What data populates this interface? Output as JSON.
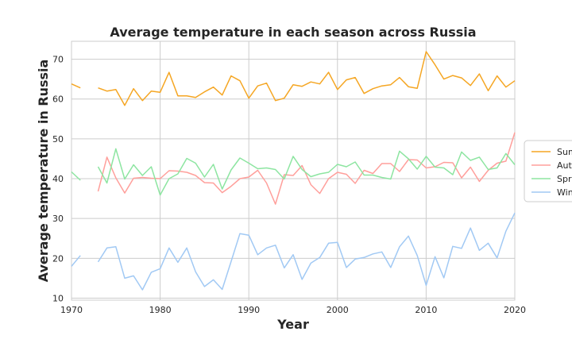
{
  "chart_data": {
    "type": "line",
    "title": "Average temperature in each season across Russia",
    "xlabel": "Year",
    "ylabel": "Average temperature in Russia",
    "xlim": [
      1970,
      2020
    ],
    "ylim": [
      9.5,
      74.5
    ],
    "xticks": [
      1970,
      1980,
      1990,
      2000,
      2010,
      2020
    ],
    "yticks": [
      10,
      20,
      30,
      40,
      50,
      60,
      70
    ],
    "grid": true,
    "legend_position": "right",
    "x": [
      1970,
      1971,
      1972,
      1973,
      1974,
      1975,
      1976,
      1977,
      1978,
      1979,
      1980,
      1981,
      1982,
      1983,
      1984,
      1985,
      1986,
      1987,
      1988,
      1989,
      1990,
      1991,
      1992,
      1993,
      1994,
      1995,
      1996,
      1997,
      1998,
      1999,
      2000,
      2001,
      2002,
      2003,
      2004,
      2005,
      2006,
      2007,
      2008,
      2009,
      2010,
      2011,
      2012,
      2013,
      2014,
      2015,
      2016,
      2017,
      2018,
      2019,
      2020
    ],
    "series": [
      {
        "name": "Summer",
        "color": "#f5a623",
        "values": [
          63.8,
          62.8,
          null,
          62.8,
          62.0,
          62.4,
          58.4,
          62.6,
          59.6,
          62.0,
          61.7,
          66.7,
          60.8,
          60.8,
          60.4,
          61.8,
          63.0,
          61.0,
          65.8,
          64.6,
          60.2,
          63.3,
          64.0,
          59.6,
          60.2,
          63.6,
          63.2,
          64.3,
          63.8,
          66.7,
          62.4,
          64.8,
          65.4,
          61.4,
          62.6,
          63.3,
          63.6,
          65.4,
          63.1,
          62.7,
          71.9,
          68.6,
          65.0,
          65.9,
          65.3,
          63.4,
          66.3,
          62.1,
          65.8,
          63.0,
          64.6
        ]
      },
      {
        "name": "Autumn",
        "color": "#ff9f9b",
        "values": [
          null,
          null,
          null,
          36.8,
          45.4,
          40.2,
          36.4,
          40.1,
          40.3,
          40.1,
          40.0,
          42.0,
          41.9,
          41.6,
          40.8,
          39.0,
          38.9,
          36.5,
          38.1,
          40.0,
          40.4,
          42.1,
          38.9,
          33.6,
          41.0,
          40.8,
          43.3,
          38.5,
          36.3,
          40.0,
          41.6,
          41.1,
          38.8,
          42.1,
          41.3,
          43.8,
          43.8,
          41.8,
          44.8,
          44.7,
          42.7,
          43.0,
          44.1,
          44.0,
          40.2,
          42.9,
          39.3,
          42.1,
          43.9,
          44.4,
          51.6
        ]
      },
      {
        "name": "Spring",
        "color": "#8de5a1",
        "values": [
          41.7,
          39.6,
          null,
          43.0,
          38.9,
          47.5,
          39.9,
          43.5,
          40.8,
          43.0,
          35.9,
          40.0,
          41.2,
          45.1,
          43.9,
          40.4,
          43.6,
          37.4,
          42.2,
          45.2,
          43.9,
          42.5,
          42.7,
          42.3,
          39.9,
          45.6,
          42.3,
          40.5,
          41.2,
          41.6,
          43.6,
          43.0,
          44.2,
          40.9,
          40.9,
          40.3,
          39.9,
          46.9,
          45.0,
          42.4,
          45.6,
          42.9,
          42.7,
          41.0,
          46.7,
          44.6,
          45.4,
          42.3,
          42.7,
          46.3,
          43.5
        ]
      },
      {
        "name": "Winter",
        "color": "#a1c9f4",
        "values": [
          18.0,
          20.7,
          null,
          19.1,
          22.6,
          22.9,
          15.0,
          15.6,
          12.1,
          16.5,
          17.4,
          22.6,
          19.0,
          22.6,
          16.6,
          12.9,
          14.6,
          12.2,
          19.2,
          26.2,
          25.8,
          20.9,
          22.6,
          23.3,
          17.6,
          20.9,
          14.7,
          18.8,
          20.2,
          23.8,
          24.0,
          17.7,
          19.8,
          20.2,
          21.1,
          21.6,
          17.7,
          22.9,
          25.6,
          20.7,
          13.2,
          20.4,
          15.1,
          23.0,
          22.5,
          27.6,
          22.0,
          23.8,
          20.1,
          26.8,
          31.4
        ]
      }
    ]
  },
  "legend": {
    "labels": [
      "Summer",
      "Autumn",
      "Spring",
      "Winter"
    ]
  }
}
